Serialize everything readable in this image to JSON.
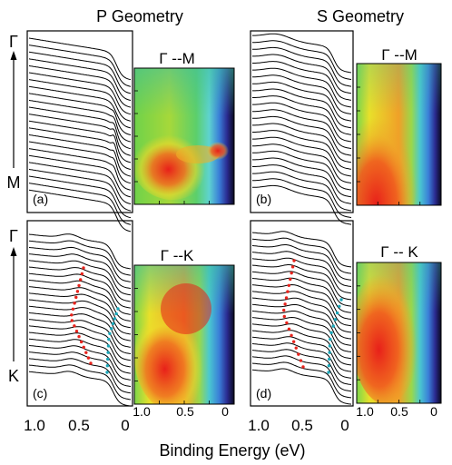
{
  "figure": {
    "columns": {
      "left": "P Geometry",
      "right": "S Geometry"
    },
    "x_axis_label": "Binding Energy (eV)",
    "x_ticks": [
      "1.0",
      "0.5",
      "0"
    ],
    "heatmap_ticks": [
      "1.0",
      "0.5",
      "0"
    ],
    "direction_labels": {
      "top": {
        "start": "M",
        "end": "Γ"
      },
      "bottom": {
        "start": "K",
        "end": "Γ"
      }
    },
    "panels": [
      {
        "tag": "(a)",
        "map_title": "Γ --M"
      },
      {
        "tag": "(b)",
        "map_title": "Γ --M"
      },
      {
        "tag": "(c)",
        "map_title": "Γ --K"
      },
      {
        "tag": "(d)",
        "map_title": "Γ -- K"
      }
    ],
    "colors": {
      "frame": "#000000",
      "curve": "#000000",
      "red_markers": "#e8231c",
      "cyan_markers": "#1aa6b8",
      "heat_hot": "#e8201a",
      "heat_mid": "#f5e22a",
      "heat_cool": "#5ad65a",
      "heat_cold": "#1a1a7a"
    }
  }
}
